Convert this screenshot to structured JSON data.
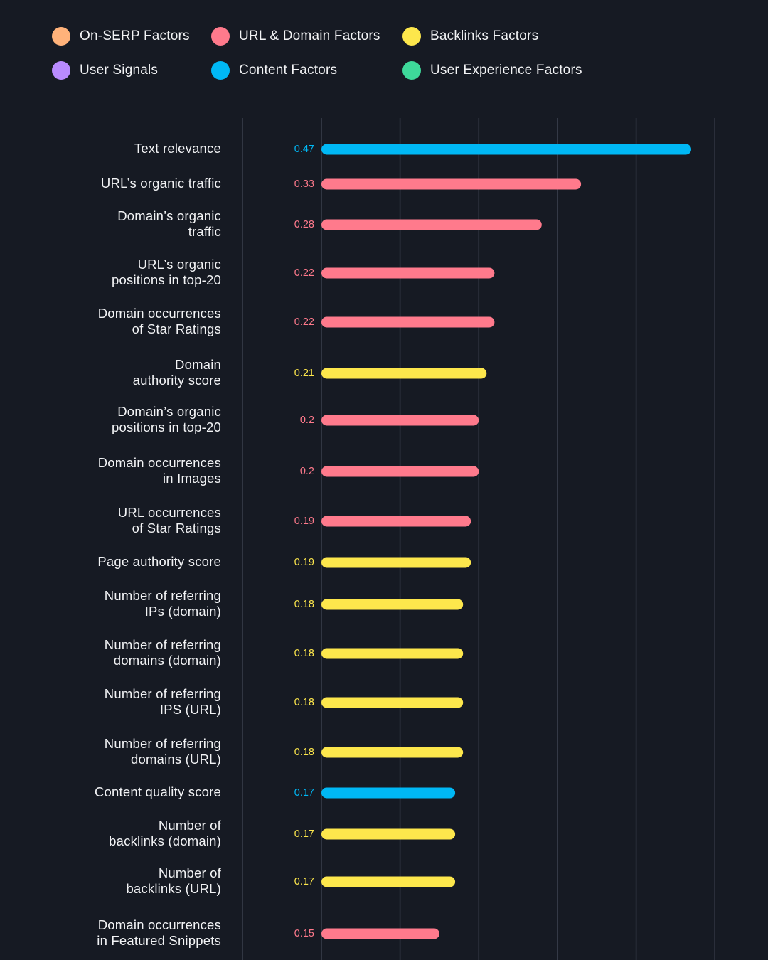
{
  "legend": [
    {
      "label": "On-SERP Factors",
      "color": "#ffb27a"
    },
    {
      "label": "URL & Domain Factors",
      "color": "#ff7a8c"
    },
    {
      "label": "Backlinks Factors",
      "color": "#fde74c"
    },
    {
      "label": "User Signals",
      "color": "#b98bff"
    },
    {
      "label": "Content Factors",
      "color": "#00b8f5"
    },
    {
      "label": "User Experience Factors",
      "color": "#3ed99a"
    }
  ],
  "chart_data": {
    "type": "bar",
    "orientation": "horizontal",
    "title": "",
    "xlabel": "",
    "ylabel": "",
    "xlim": [
      0,
      0.5
    ],
    "grid": true,
    "legend_position": "top",
    "categories": [
      [
        "Text relevance"
      ],
      [
        "URL’s organic traffic"
      ],
      [
        "Domain’s organic",
        "traffic"
      ],
      [
        "URL’s organic",
        "positions in top-20"
      ],
      [
        "Domain occurrences",
        "of Star Ratings"
      ],
      [
        "Domain",
        "authority score"
      ],
      [
        "Domain’s organic",
        "positions in top-20"
      ],
      [
        "Domain occurrences",
        "in Images"
      ],
      [
        "URL occurrences",
        "of Star Ratings"
      ],
      [
        "Page authority score"
      ],
      [
        "Number of referring",
        "IPs (domain)"
      ],
      [
        "Number of referring",
        "domains (domain)"
      ],
      [
        "Number of referring",
        "IPS (URL)"
      ],
      [
        "Number of referring",
        "domains (URL)"
      ],
      [
        "Content quality score"
      ],
      [
        "Number of",
        "backlinks (domain)"
      ],
      [
        "Number of",
        "backlinks (URL)"
      ],
      [
        "Domain occurrences",
        "in Featured Snippets"
      ]
    ],
    "values": [
      0.47,
      0.33,
      0.28,
      0.22,
      0.22,
      0.21,
      0.2,
      0.2,
      0.19,
      0.19,
      0.18,
      0.18,
      0.18,
      0.18,
      0.17,
      0.17,
      0.17,
      0.15
    ],
    "value_labels": [
      "0.47",
      "0.33",
      "0.28",
      "0.22",
      "0.22",
      "0.21",
      "0.2",
      "0.2",
      "0.19",
      "0.19",
      "0.18",
      "0.18",
      "0.18",
      "0.18",
      "0.17",
      "0.17",
      "0.17",
      "0.15"
    ],
    "groups": [
      "Content Factors",
      "URL & Domain Factors",
      "URL & Domain Factors",
      "URL & Domain Factors",
      "URL & Domain Factors",
      "Backlinks Factors",
      "URL & Domain Factors",
      "URL & Domain Factors",
      "URL & Domain Factors",
      "Backlinks Factors",
      "Backlinks Factors",
      "Backlinks Factors",
      "Backlinks Factors",
      "Backlinks Factors",
      "Content Factors",
      "Backlinks Factors",
      "Backlinks Factors",
      "URL & Domain Factors"
    ]
  }
}
